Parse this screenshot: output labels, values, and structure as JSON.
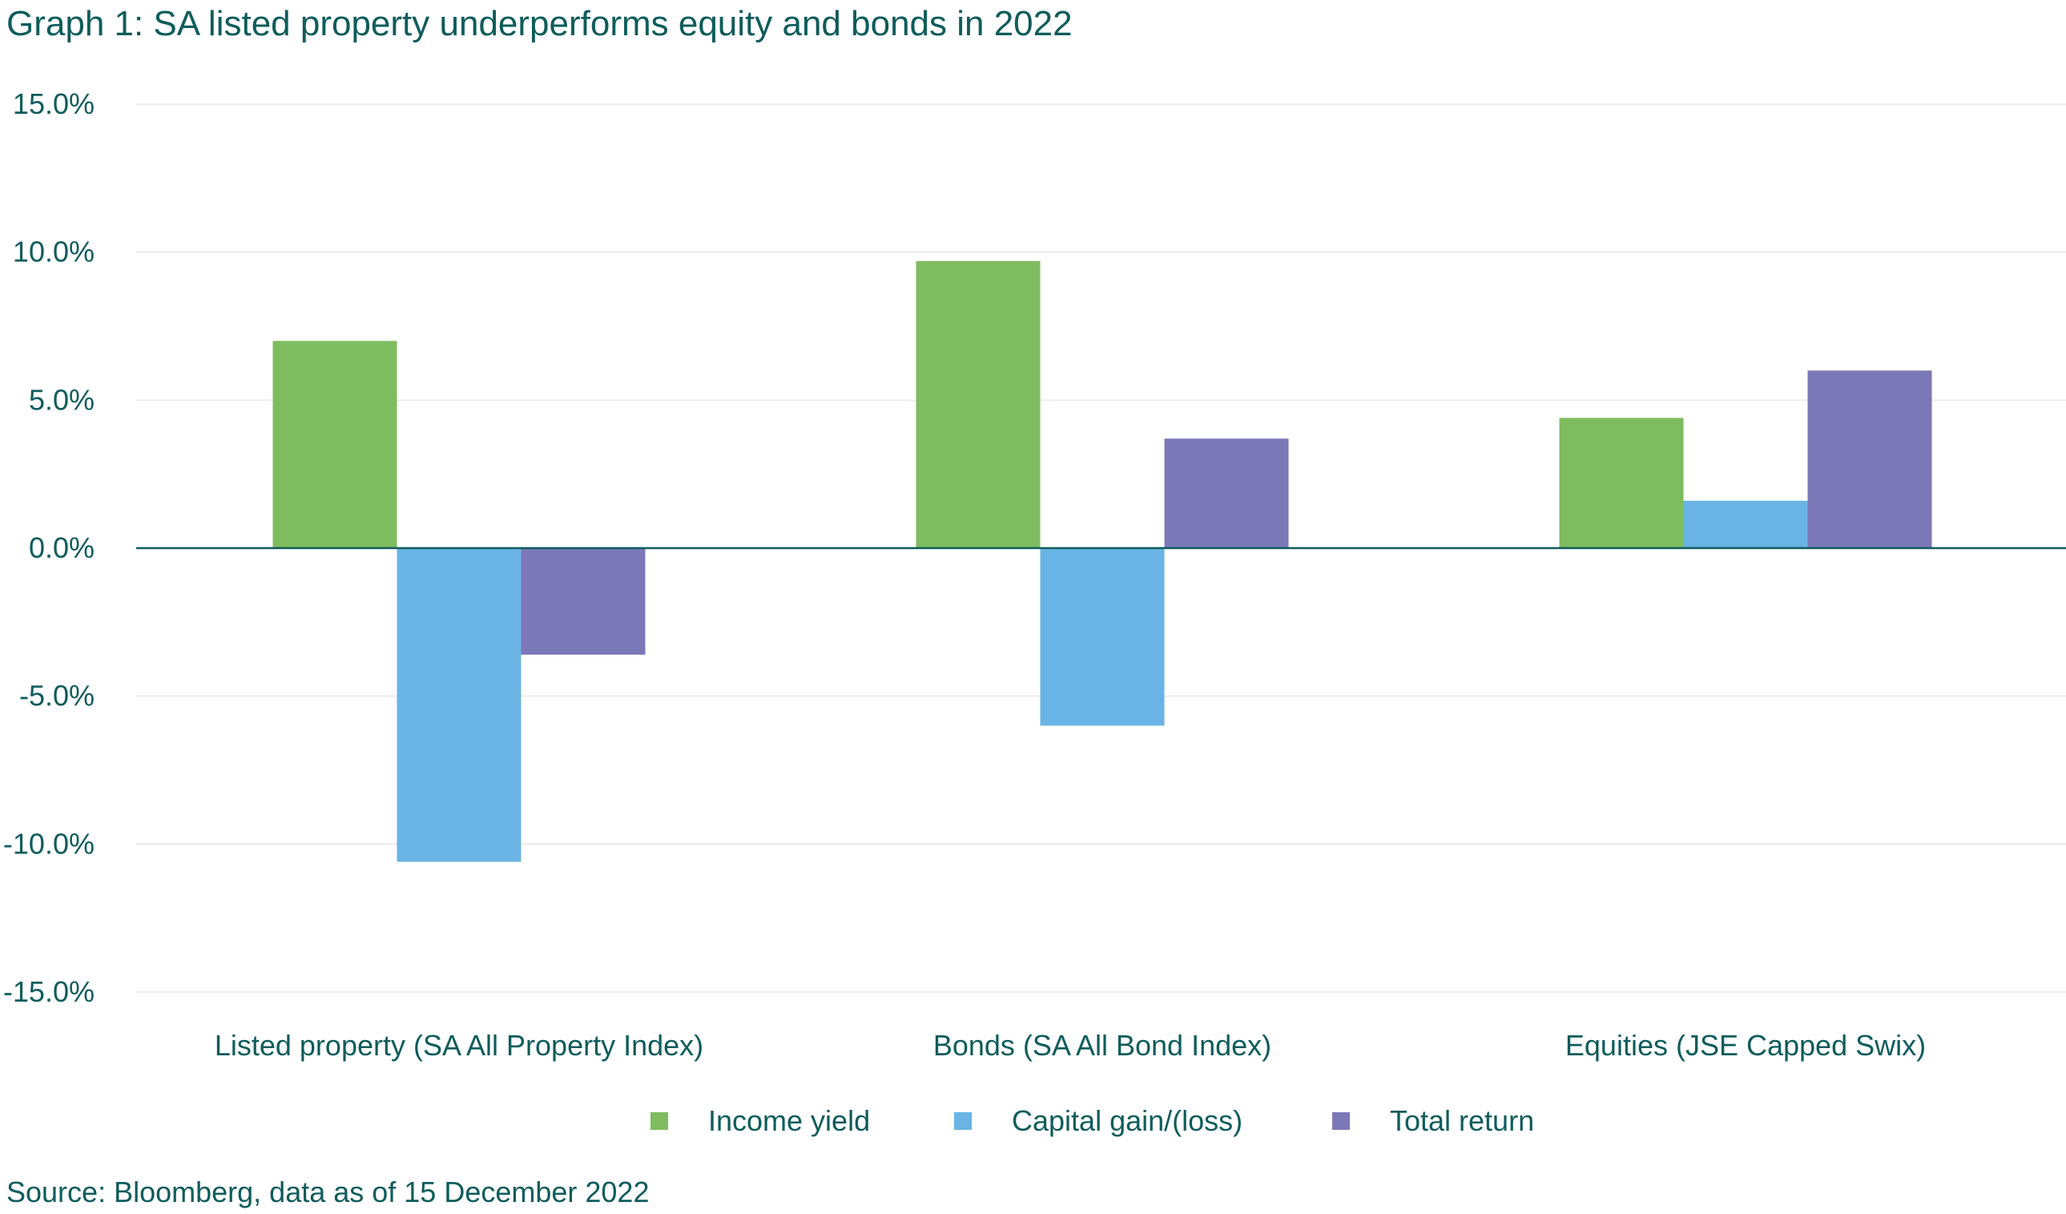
{
  "title": "Graph 1: SA listed property underperforms equity and bonds in 2022",
  "source": "Source: Bloomberg, data as of 15 December 2022",
  "colors": {
    "text": "#0f5c5c",
    "grid": "#e6e6e6",
    "zero_line": "#0f5c5c",
    "income_yield": "#7fbc5f",
    "capital_gain": "#69b4e4",
    "total_return": "#7c78b8"
  },
  "chart_data": {
    "type": "bar",
    "title": "Graph 1: SA listed property underperforms equity and bonds in 2022",
    "xlabel": "",
    "ylabel": "",
    "ylim": [
      -15,
      15
    ],
    "yticks": [
      15,
      10,
      5,
      0,
      -5,
      -10,
      -15
    ],
    "ytick_labels": [
      "15.0%",
      "10.0%",
      "5.0%",
      "0.0%",
      "-5.0%",
      "-10.0%",
      "-15.0%"
    ],
    "grid": true,
    "legend_position": "bottom",
    "categories": [
      "Listed property (SA All Property Index)",
      "Bonds (SA All Bond Index)",
      "Equities (JSE Capped Swix)"
    ],
    "series": [
      {
        "name": "Income yield",
        "color": "#7fbc5f",
        "values": [
          7.0,
          9.7,
          4.4
        ]
      },
      {
        "name": "Capital gain/(loss)",
        "color": "#69b4e4",
        "values": [
          -10.6,
          -6.0,
          1.6
        ]
      },
      {
        "name": "Total return",
        "color": "#7c78b8",
        "values": [
          -3.6,
          3.7,
          6.0
        ]
      }
    ]
  }
}
